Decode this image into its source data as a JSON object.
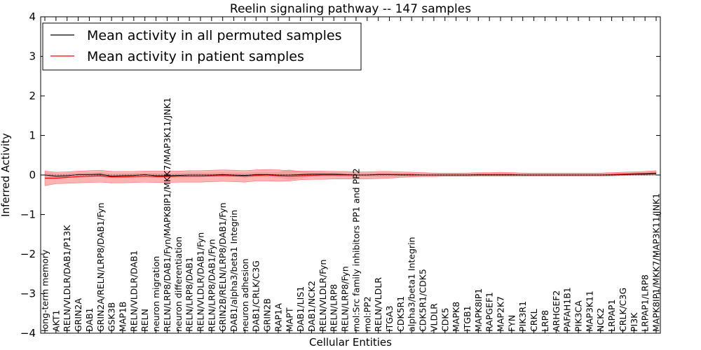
{
  "chart_data": {
    "type": "line",
    "title": "Reelin signaling pathway -- 147 samples",
    "xlabel": "Cellular Entities",
    "ylabel": "Inferred Activity",
    "ylim": [
      -4,
      4
    ],
    "yticks": [
      "−4",
      "−3",
      "−2",
      "−1",
      "0",
      "1",
      "2",
      "3",
      "4"
    ],
    "grid": false,
    "legend_position": "top-left",
    "categories": [
      "long-term memory",
      "AKT1",
      "RELN/VLDLR/DAB1/P13K",
      "GRIN2A",
      "DAB1",
      "GRIN2A/RELN/LRP8/DAB1/Fyn",
      "GSK3B",
      "MAP1B",
      "RELN/VLDLR/DAB1",
      "RELN",
      "neuron migration",
      "RELN/LRP8/DAB1/Fyn/MAPK8IP1/MKK7/MAP3K11/JNK1",
      "neuron differentiation",
      "RELN/LRP8/DAB1",
      "RELN/VLDLR/DAB1/Fyn",
      "RELN/LRP8/DAB1/Fyn",
      "GRIN2B/RELN/LRP8/DAB1/Fyn",
      "DAB1/alpha3/beta1 Integrin",
      "neuron adhesion",
      "DAB1/CRLK/C3G",
      "GRIN2B",
      "RAP1A",
      "MAPT",
      "DAB1/LIS1",
      "DAB1/NCK2",
      "RELN/VLDLR/Fyn",
      "RELN/LRP8",
      "RELN/LRP8/Fyn",
      "mol:Src family inhibitors PP1 and PP2",
      "mol:PP2",
      "RELN/VLDLR",
      "ITGA3",
      "CDK5R1",
      "alpha3/beta1 Integrin",
      "CDK5R1/CDK5",
      "VLDLR",
      "CDK5",
      "MAPK8",
      "ITGB1",
      "MAPK8IP1",
      "RAPGEF1",
      "MAP2K7",
      "FYN",
      "PIK3R1",
      "CRKL",
      "LRP8",
      "ARHGEF2",
      "PAFAH1B1",
      "PIK3CA",
      "MAP3K11",
      "NCK2",
      "LRPAP1",
      "CRLK/C3G",
      "PI3K",
      "LRPAP1/LRP8",
      "MAPK8IP1/MKK7/MAP3K11/JNK1"
    ],
    "series": [
      {
        "name": "Mean activity in all permuted samples",
        "color": "#000000",
        "values": [
          0.0,
          -0.03,
          -0.02,
          0.01,
          0.01,
          0.02,
          -0.03,
          -0.02,
          -0.01,
          0.01,
          -0.02,
          -0.02,
          -0.01,
          0.0,
          0.0,
          0.0,
          0.01,
          0.0,
          -0.01,
          0.01,
          0.01,
          0.0,
          0.0,
          0.01,
          0.02,
          0.02,
          0.02,
          0.01,
          0.0,
          0.0,
          0.01,
          0.01,
          0.0,
          0.0,
          0.0,
          0.0,
          0.0,
          0.0,
          0.0,
          0.0,
          0.0,
          0.0,
          0.0,
          0.0,
          0.0,
          0.0,
          0.0,
          0.0,
          0.0,
          0.0,
          0.0,
          0.0,
          0.01,
          0.02,
          0.02,
          0.03
        ],
        "band_lower": [
          -0.05,
          -0.08,
          -0.07,
          -0.05,
          -0.05,
          -0.05,
          -0.08,
          -0.07,
          -0.06,
          -0.05,
          -0.07,
          -0.07,
          -0.06,
          -0.05,
          -0.05,
          -0.05,
          -0.05,
          -0.05,
          -0.07,
          -0.05,
          -0.05,
          -0.07,
          -0.12,
          -0.08,
          -0.05,
          -0.04,
          -0.04,
          -0.05,
          -0.05,
          -0.05,
          -0.05,
          -0.05,
          -0.04,
          -0.04,
          -0.04,
          -0.04,
          -0.04,
          -0.04,
          -0.04,
          -0.04,
          -0.04,
          -0.04,
          -0.04,
          -0.04,
          -0.04,
          -0.04,
          -0.04,
          -0.04,
          -0.04,
          -0.04,
          -0.04,
          -0.03,
          -0.02,
          -0.02,
          -0.02,
          -0.01
        ],
        "band_upper": [
          0.07,
          0.03,
          0.04,
          0.06,
          0.06,
          0.07,
          0.03,
          0.04,
          0.05,
          0.06,
          0.05,
          0.05,
          0.05,
          0.06,
          0.06,
          0.06,
          0.07,
          0.06,
          0.06,
          0.07,
          0.07,
          0.07,
          0.14,
          0.09,
          0.08,
          0.07,
          0.07,
          0.06,
          0.05,
          0.05,
          0.06,
          0.06,
          0.05,
          0.05,
          0.05,
          0.05,
          0.05,
          0.05,
          0.05,
          0.05,
          0.05,
          0.05,
          0.05,
          0.05,
          0.05,
          0.05,
          0.05,
          0.05,
          0.05,
          0.05,
          0.05,
          0.06,
          0.06,
          0.07,
          0.07,
          0.09
        ]
      },
      {
        "name": "Mean activity in patient samples",
        "color": "#ff0000",
        "values": [
          -0.08,
          -0.08,
          -0.06,
          -0.04,
          -0.03,
          -0.02,
          -0.05,
          -0.05,
          -0.04,
          -0.03,
          -0.04,
          -0.04,
          -0.03,
          -0.03,
          -0.03,
          -0.02,
          -0.01,
          -0.02,
          -0.03,
          -0.01,
          0.0,
          -0.02,
          -0.03,
          -0.02,
          -0.01,
          0.0,
          0.0,
          0.0,
          0.0,
          0.0,
          0.01,
          0.01,
          0.01,
          0.01,
          0.0,
          0.0,
          0.0,
          0.0,
          0.0,
          0.01,
          0.01,
          0.01,
          0.01,
          0.0,
          0.0,
          0.0,
          0.0,
          0.0,
          0.0,
          0.0,
          0.0,
          0.01,
          0.02,
          0.03,
          0.04,
          0.05
        ],
        "band_lower": [
          -0.27,
          -0.22,
          -0.21,
          -0.2,
          -0.19,
          -0.18,
          -0.2,
          -0.2,
          -0.19,
          -0.18,
          -0.19,
          -0.19,
          -0.18,
          -0.18,
          -0.18,
          -0.17,
          -0.16,
          -0.17,
          -0.18,
          -0.15,
          -0.15,
          -0.16,
          -0.15,
          -0.12,
          -0.11,
          -0.11,
          -0.1,
          -0.1,
          -0.1,
          -0.1,
          -0.09,
          -0.08,
          -0.06,
          -0.05,
          -0.04,
          -0.04,
          -0.03,
          -0.03,
          -0.03,
          -0.02,
          -0.02,
          -0.02,
          -0.02,
          -0.02,
          -0.02,
          -0.02,
          -0.02,
          -0.02,
          -0.02,
          -0.02,
          -0.02,
          -0.02,
          -0.01,
          0.0,
          0.0,
          0.0
        ],
        "band_upper": [
          0.1,
          0.07,
          0.08,
          0.1,
          0.11,
          0.12,
          0.09,
          0.09,
          0.09,
          0.1,
          0.1,
          0.1,
          0.1,
          0.11,
          0.11,
          0.12,
          0.13,
          0.12,
          0.11,
          0.13,
          0.14,
          0.13,
          0.11,
          0.1,
          0.1,
          0.1,
          0.09,
          0.09,
          0.08,
          0.08,
          0.09,
          0.09,
          0.08,
          0.07,
          0.06,
          0.05,
          0.05,
          0.05,
          0.05,
          0.06,
          0.06,
          0.07,
          0.06,
          0.05,
          0.05,
          0.05,
          0.05,
          0.05,
          0.05,
          0.05,
          0.05,
          0.06,
          0.07,
          0.08,
          0.09,
          0.11
        ]
      }
    ],
    "permuted_band_color": "#c8c8c8",
    "patient_band_color": "#ff8080"
  }
}
